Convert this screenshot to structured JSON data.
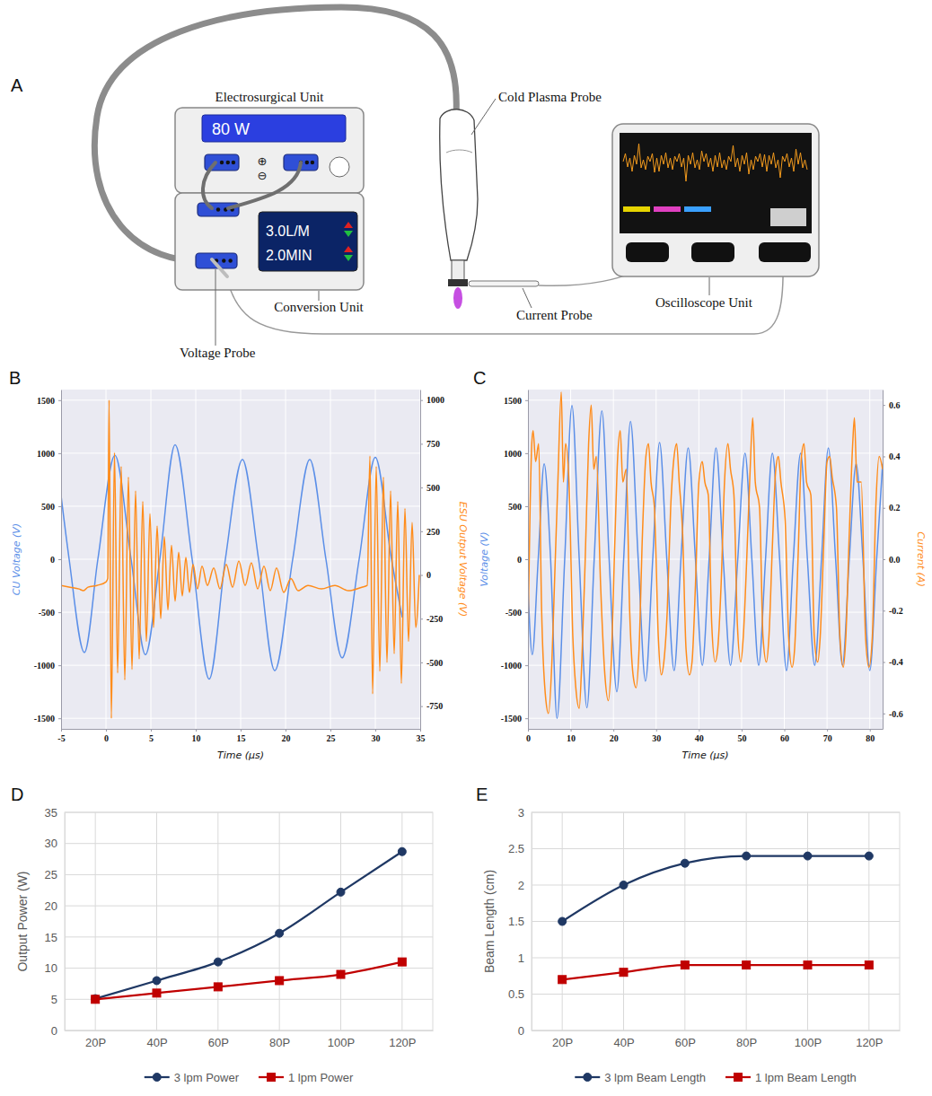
{
  "diagram": {
    "panel": "A",
    "esu": {
      "label": "Electrosurgical Unit",
      "display": "80 W",
      "plus": "⊕",
      "minus": "⊖"
    },
    "conversion": {
      "label": "Conversion Unit",
      "flow": "3.0L/M",
      "time": "2.0MIN"
    },
    "probe": "Cold Plasma Probe",
    "current_probe": "Current Probe",
    "oscilloscope": "Oscilloscope Unit",
    "voltage_probe": "Voltage Probe"
  },
  "chart_data": [
    {
      "panel": "B",
      "type": "line",
      "x_label": "Time (µs)",
      "y_label": "CU Voltage (V)",
      "y2_label": "ESU Output Voltage (V)",
      "xlim": [
        -5,
        35
      ],
      "xticks": [
        -5,
        0,
        5,
        10,
        15,
        20,
        25,
        30,
        35
      ],
      "ylim": [
        -1600,
        1600
      ],
      "yticks": [
        -1500,
        -1000,
        -500,
        0,
        500,
        1000,
        1500
      ],
      "y2lim": [
        -880,
        1060
      ],
      "y2ticks": [
        -750,
        -500,
        -250,
        0,
        250,
        500,
        750,
        1000
      ],
      "grid": true,
      "series": [
        {
          "color": "#5b8fe8",
          "x": [
            -5,
            -4.1,
            -2.4,
            -0.9,
            1.0,
            2.8,
            4.4,
            6.0,
            7.7,
            9.6,
            11.5,
            13.3,
            15.2,
            17.0,
            18.8,
            20.8,
            22.7,
            24.5,
            26.3,
            28.2,
            30.0,
            31.8,
            33.0
          ],
          "values": [
            600,
            0,
            -880,
            0,
            980,
            0,
            -900,
            0,
            1080,
            0,
            -1130,
            0,
            940,
            0,
            -1050,
            0,
            940,
            0,
            -930,
            0,
            960,
            0,
            -550
          ]
        },
        {
          "color": "#ff8c1a",
          "axis": "y2",
          "x": [
            -5,
            -4,
            -3,
            -2.5,
            -2,
            -1,
            0,
            0.2,
            0.35,
            0.6,
            0.95,
            1.3,
            1.7,
            2.1,
            2.5,
            2.9,
            3.3,
            3.7,
            4.1,
            4.5,
            4.9,
            5.3,
            5.7,
            6.1,
            6.5,
            6.9,
            7.3,
            7.7,
            8.1,
            8.5,
            8.9,
            9.3,
            9.7,
            10.2,
            10.7,
            11.3,
            12.0,
            12.7,
            13.4,
            14.1,
            14.8,
            15.5,
            16.2,
            16.9,
            17.6,
            18.3,
            19.0,
            19.8,
            20.6,
            21.4,
            22.5,
            24,
            25.5,
            27,
            28.5,
            29.1,
            29.4,
            29.7,
            30.1,
            30.5,
            30.9,
            31.3,
            31.7,
            32.1,
            32.5,
            32.9,
            33.3,
            33.7,
            34.1,
            34.5,
            34.9
          ],
          "values": [
            -60,
            -70,
            -80,
            -90,
            -70,
            -60,
            -40,
            -20,
            1000,
            -820,
            700,
            -560,
            620,
            -600,
            560,
            -540,
            480,
            -480,
            420,
            -380,
            350,
            -300,
            280,
            -250,
            220,
            -200,
            170,
            -150,
            130,
            -120,
            100,
            -100,
            60,
            -80,
            50,
            -60,
            40,
            -80,
            60,
            -70,
            80,
            -60,
            70,
            -80,
            50,
            -90,
            40,
            -100,
            -20,
            -90,
            -60,
            -80,
            -60,
            -90,
            -70,
            -60,
            680,
            -680,
            620,
            -550,
            560,
            -500,
            480,
            -450,
            420,
            -620,
            380,
            -380,
            300,
            -300,
            0
          ]
        }
      ]
    },
    {
      "panel": "C",
      "type": "line",
      "x_label": "Time (µs)",
      "y_label": "Voltage (V)",
      "y2_label": "Current (A)",
      "xlim": [
        0,
        83
      ],
      "xticks": [
        0,
        10,
        20,
        30,
        40,
        50,
        60,
        70,
        80
      ],
      "ylim": [
        -1600,
        1600
      ],
      "yticks": [
        -1500,
        -1000,
        -500,
        0,
        500,
        1000,
        1500
      ],
      "y2lim": [
        -0.66,
        0.66
      ],
      "y2ticks": [
        -0.6,
        -0.4,
        -0.2,
        {
          "value": 0,
          "label": "0.0"
        },
        0.2,
        0.4,
        0.6
      ],
      "grid": true,
      "series": [
        {
          "color": "#5b8fe8",
          "x": [
            0,
            1.0,
            2.4,
            3.8,
            5.3,
            6.8,
            8.6,
            10.3,
            12.0,
            13.8,
            15.5,
            17.3,
            19.0,
            20.8,
            22.4,
            24.0,
            25.8,
            27.5,
            29.2,
            30.8,
            32.5,
            34.2,
            35.8,
            37.5,
            39.2,
            40.8,
            42.4,
            44.0,
            45.7,
            47.4,
            49.1,
            50.8,
            52.4,
            54.0,
            55.6,
            57.2,
            58.9,
            60.5,
            62.1,
            63.8,
            65.4,
            67.1,
            68.7,
            70.3,
            72.0,
            73.6,
            75.2,
            76.8,
            78.4,
            80.0,
            81.6,
            83.0
          ],
          "values": [
            -250,
            -900,
            0,
            900,
            0,
            -1500,
            0,
            1450,
            0,
            -1400,
            0,
            1400,
            0,
            -1250,
            0,
            1300,
            0,
            -1150,
            0,
            1100,
            0,
            -1050,
            0,
            1050,
            0,
            -1000,
            0,
            1050,
            0,
            -1000,
            0,
            1000,
            0,
            -1000,
            0,
            1000,
            0,
            -1050,
            0,
            1000,
            0,
            -1000,
            0,
            1050,
            0,
            -1000,
            0,
            900,
            0,
            -1050,
            0,
            900
          ]
        },
        {
          "color": "#ff8c1a",
          "axis": "y2",
          "x": [
            0,
            0.5,
            0.9,
            1.2,
            1.8,
            2.5,
            3.2,
            4.2,
            4.8,
            5.6,
            6.2,
            7.0,
            7.8,
            8.3,
            8.8,
            9.6,
            10.5,
            11.2,
            12.0,
            12.6,
            13.4,
            14.2,
            14.8,
            15.4,
            16.0,
            17.0,
            18.0,
            18.8,
            19.5,
            20.3,
            21.0,
            21.6,
            22.2,
            23.0,
            23.8,
            24.6,
            25.3,
            26.0,
            26.8,
            27.6,
            28.2,
            28.8,
            29.6,
            30.5,
            31.2,
            31.8,
            32.6,
            33.4,
            34.2,
            34.8,
            35.4,
            36.2,
            37.0,
            37.8,
            38.4,
            39.2,
            40.0,
            40.8,
            41.4,
            42.2,
            43.0,
            43.8,
            44.4,
            45.2,
            46.0,
            46.8,
            47.4,
            48.2,
            49.0,
            49.8,
            50.4,
            51.2,
            52.0,
            52.6,
            53.2,
            54.2,
            55.0,
            55.8,
            56.4,
            57.2,
            58.0,
            58.6,
            59.2,
            60.2,
            61.0,
            61.8,
            62.4,
            63.2,
            64.0,
            64.6,
            65.2,
            66.2,
            67.0,
            67.8,
            68.4,
            69.2,
            70.0,
            70.6,
            71.2,
            72.2,
            73.0,
            73.8,
            74.4,
            75.2,
            76.0,
            76.4,
            77.0,
            78.0,
            79.0,
            79.8,
            80.6,
            81.4,
            82.2,
            83.0
          ],
          "values": [
            -0.3,
            0.2,
            0.45,
            0.5,
            0.38,
            0.45,
            -0.2,
            -0.55,
            -0.6,
            -0.4,
            -0.1,
            0.3,
            0.65,
            0.3,
            0.45,
            0.3,
            -0.3,
            -0.5,
            -0.58,
            -0.4,
            0.0,
            0.45,
            0.6,
            0.35,
            0.4,
            -0.1,
            -0.45,
            -0.55,
            -0.4,
            0.05,
            0.4,
            0.5,
            0.3,
            0.35,
            -0.2,
            -0.45,
            -0.5,
            -0.35,
            0.1,
            0.4,
            0.45,
            0.3,
            0.2,
            -0.3,
            -0.45,
            -0.4,
            -0.2,
            0.2,
            0.4,
            0.45,
            0.3,
            0.1,
            -0.35,
            -0.45,
            -0.4,
            -0.1,
            0.3,
            0.38,
            0.3,
            0.25,
            -0.25,
            -0.4,
            -0.35,
            -0.1,
            0.3,
            0.45,
            0.35,
            0.25,
            -0.25,
            -0.4,
            -0.3,
            0.0,
            0.35,
            0.55,
            0.3,
            0.2,
            -0.3,
            -0.4,
            -0.3,
            0.05,
            0.35,
            0.4,
            0.3,
            0.15,
            -0.3,
            -0.42,
            -0.35,
            0.0,
            0.4,
            0.45,
            0.3,
            0.25,
            -0.3,
            -0.4,
            -0.3,
            0.05,
            0.38,
            0.4,
            0.32,
            0.2,
            -0.3,
            -0.42,
            -0.3,
            0.1,
            0.45,
            0.55,
            0.3,
            0.3,
            -0.3,
            -0.42,
            -0.3,
            0.2,
            0.4,
            0.35
          ]
        }
      ]
    },
    {
      "panel": "D",
      "type": "line",
      "y_label": "Output Power (W)",
      "categories": [
        "20P",
        "40P",
        "60P",
        "80P",
        "100P",
        "120P"
      ],
      "ylim": [
        0,
        35
      ],
      "yticks": [
        0,
        5,
        10,
        15,
        20,
        25,
        30,
        35
      ],
      "grid": true,
      "legend": "bottom",
      "series": [
        {
          "name": "3 lpm Power",
          "color": "#1f3864",
          "marker": "circle",
          "values": [
            5.1,
            8,
            11,
            15.6,
            22.2,
            28.7
          ]
        },
        {
          "name": "1 lpm Power",
          "color": "#c00000",
          "marker": "square",
          "values": [
            5,
            6,
            7,
            8,
            9,
            11
          ]
        }
      ]
    },
    {
      "panel": "E",
      "type": "line",
      "y_label": "Beam Length (cm)",
      "categories": [
        "20P",
        "40P",
        "60P",
        "80P",
        "100P",
        "120P"
      ],
      "ylim": [
        0,
        3
      ],
      "yticks": [
        0,
        0.5,
        1,
        1.5,
        2,
        2.5,
        3
      ],
      "grid": true,
      "legend": "bottom",
      "series": [
        {
          "name": "3 lpm Beam Length",
          "color": "#1f3864",
          "marker": "circle",
          "values": [
            1.5,
            2.0,
            2.3,
            2.4,
            2.4,
            2.4
          ]
        },
        {
          "name": "1 lpm Beam Length",
          "color": "#c00000",
          "marker": "square",
          "values": [
            0.7,
            0.8,
            0.9,
            0.9,
            0.9,
            0.9
          ]
        }
      ]
    }
  ]
}
